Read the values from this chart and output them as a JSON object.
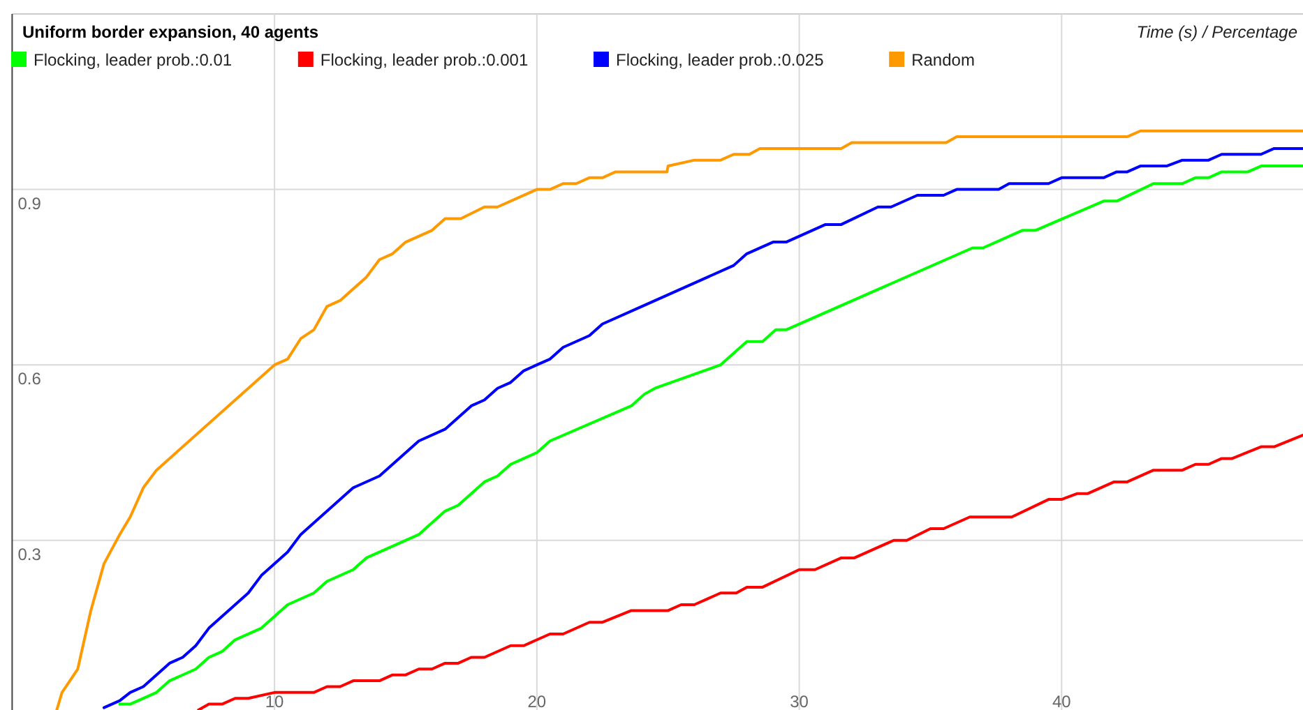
{
  "chart_data": {
    "type": "line",
    "title": "Uniform border expansion, 40 agents",
    "annotations": [
      "Time (s) / Percentage"
    ],
    "xlim": [
      0,
      49.2
    ],
    "ylim": [
      0.01,
      1.2
    ],
    "xticks": [
      10,
      20,
      30,
      40
    ],
    "yticks": [
      0.3,
      0.6,
      0.9
    ],
    "grid": true,
    "legend": "top left",
    "marker": "none",
    "line_style": "solid",
    "series": [
      {
        "name": "Flocking, leader prob.:0.01",
        "color": "#00ff00",
        "x": [
          4.1,
          4.5,
          5.5,
          6,
          7,
          7.5,
          8,
          8.5,
          9.5,
          10.5,
          11.5,
          12,
          13,
          13.5,
          15.5,
          16.5,
          17,
          18,
          18.5,
          19,
          19.5,
          20,
          20.5,
          23.6,
          24.1,
          24.5,
          27,
          27.5,
          28,
          28.6,
          29.1,
          29.5,
          36.6,
          37,
          38.5,
          39,
          41.6,
          42.1,
          43.5,
          44.6,
          45.1,
          45.6,
          46.1,
          47.1,
          47.6,
          49.2
        ],
        "values": [
          0.02,
          0.02,
          0.04,
          0.06,
          0.08,
          0.1,
          0.11,
          0.13,
          0.15,
          0.19,
          0.21,
          0.23,
          0.25,
          0.27,
          0.31,
          0.35,
          0.36,
          0.4,
          0.41,
          0.43,
          0.44,
          0.45,
          0.47,
          0.53,
          0.55,
          0.56,
          0.6,
          0.62,
          0.64,
          0.64,
          0.66,
          0.66,
          0.8,
          0.8,
          0.83,
          0.83,
          0.88,
          0.88,
          0.91,
          0.91,
          0.92,
          0.92,
          0.93,
          0.93,
          0.94,
          0.94
        ]
      },
      {
        "name": "Flocking, leader prob.:0.001",
        "color": "#ff0000",
        "x": [
          7.1,
          7.5,
          8,
          8.5,
          9,
          10,
          11.5,
          12,
          12.5,
          13,
          14,
          14.5,
          15,
          15.5,
          16,
          16.5,
          17,
          17.5,
          18,
          19,
          19.5,
          20.5,
          21,
          22,
          22.5,
          23.6,
          25,
          25.5,
          26,
          27,
          27.6,
          28,
          28.6,
          30,
          30.6,
          31.6,
          32.1,
          33.6,
          34.1,
          35,
          35.5,
          36.5,
          38.1,
          39.5,
          40,
          40.6,
          41,
          42,
          42.5,
          43.5,
          44.6,
          45.1,
          45.6,
          46.1,
          46.5,
          47.6,
          48.1,
          49.2
        ],
        "values": [
          0.01,
          0.02,
          0.02,
          0.03,
          0.03,
          0.04,
          0.04,
          0.05,
          0.05,
          0.06,
          0.06,
          0.07,
          0.07,
          0.08,
          0.08,
          0.09,
          0.09,
          0.1,
          0.1,
          0.12,
          0.12,
          0.14,
          0.14,
          0.16,
          0.16,
          0.18,
          0.18,
          0.19,
          0.19,
          0.21,
          0.21,
          0.22,
          0.22,
          0.25,
          0.25,
          0.27,
          0.27,
          0.3,
          0.3,
          0.32,
          0.32,
          0.34,
          0.34,
          0.37,
          0.37,
          0.38,
          0.38,
          0.4,
          0.4,
          0.42,
          0.42,
          0.43,
          0.43,
          0.44,
          0.44,
          0.46,
          0.46,
          0.48
        ]
      },
      {
        "name": "Flocking, leader prob.:0.025",
        "color": "#0000ff",
        "x": [
          3.5,
          4.1,
          4.5,
          5,
          6,
          6.5,
          7,
          7.5,
          9,
          9.5,
          10.5,
          11,
          13,
          14,
          15.5,
          16.5,
          17.5,
          18,
          18.5,
          19,
          19.5,
          20,
          20.5,
          21,
          22,
          22.5,
          24,
          27.5,
          28,
          29,
          29.5,
          31,
          31.6,
          33,
          33.5,
          34.5,
          35.5,
          36,
          37.6,
          38,
          39.5,
          40,
          41.6,
          42.1,
          42.5,
          43,
          44,
          44.6,
          45.6,
          46.1,
          47.6,
          48.1,
          49.2
        ],
        "values": [
          0.014,
          0.026,
          0.04,
          0.05,
          0.09,
          0.1,
          0.12,
          0.15,
          0.21,
          0.24,
          0.28,
          0.31,
          0.39,
          0.41,
          0.47,
          0.49,
          0.53,
          0.54,
          0.56,
          0.57,
          0.59,
          0.6,
          0.61,
          0.63,
          0.65,
          0.67,
          0.7,
          0.77,
          0.79,
          0.81,
          0.81,
          0.84,
          0.84,
          0.87,
          0.87,
          0.89,
          0.89,
          0.9,
          0.9,
          0.91,
          0.91,
          0.92,
          0.92,
          0.93,
          0.93,
          0.94,
          0.94,
          0.95,
          0.95,
          0.96,
          0.96,
          0.97,
          0.97
        ]
      },
      {
        "name": "Random",
        "color": "#ff9900",
        "x": [
          1.7,
          1.9,
          2.5,
          3,
          3.5,
          4.1,
          4.5,
          5,
          5.5,
          10,
          10.5,
          11,
          11.5,
          12,
          12.5,
          13.5,
          14,
          14.5,
          15,
          16,
          16.5,
          17.1,
          18,
          18.5,
          20,
          20.5,
          21,
          21.5,
          22,
          22.5,
          23,
          24.96,
          25,
          26,
          27,
          27.5,
          28.1,
          28.5,
          31.6,
          32,
          35.6,
          36,
          42.5,
          43,
          49.2
        ],
        "values": [
          0.01,
          0.04,
          0.08,
          0.18,
          0.26,
          0.31,
          0.34,
          0.39,
          0.42,
          0.6,
          0.61,
          0.645,
          0.66,
          0.7,
          0.71,
          0.75,
          0.78,
          0.79,
          0.81,
          0.83,
          0.85,
          0.85,
          0.87,
          0.87,
          0.9,
          0.9,
          0.91,
          0.91,
          0.92,
          0.92,
          0.93,
          0.93,
          0.94,
          0.95,
          0.95,
          0.96,
          0.96,
          0.97,
          0.97,
          0.98,
          0.98,
          0.99,
          0.99,
          1.0,
          1.0
        ]
      }
    ]
  }
}
